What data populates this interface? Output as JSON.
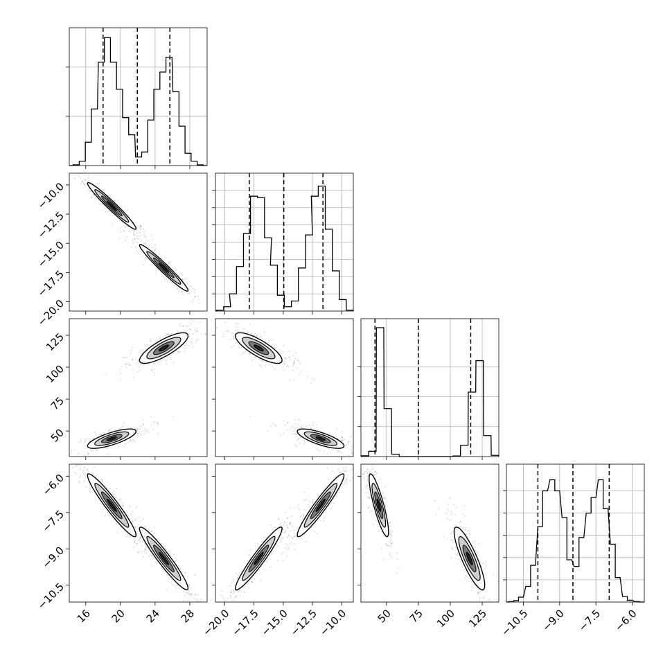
{
  "chart_data": {
    "type": "corner",
    "title": "",
    "grid": true,
    "parameters": [
      {
        "range": [
          14.1,
          30.0
        ],
        "ticks": [
          16,
          20,
          24,
          28
        ],
        "tick_labels": [
          "16",
          "20",
          "24",
          "28"
        ],
        "quantiles": [
          18.0,
          21.95,
          25.7
        ]
      },
      {
        "range": [
          -20.8,
          -9.0
        ],
        "ticks": [
          -20.0,
          -17.5,
          -15.0,
          -12.5,
          -10.0
        ],
        "tick_labels": [
          "−20.0",
          "−17.5",
          "−15.0",
          "−12.5",
          "−10.0"
        ],
        "quantiles": [
          -17.9,
          -14.95,
          -11.6
        ]
      },
      {
        "range": [
          30,
          138
        ],
        "ticks": [
          50,
          75,
          100,
          125
        ],
        "tick_labels": [
          "50",
          "75",
          "100",
          "125"
        ],
        "quantiles": [
          41,
          75,
          116
        ]
      },
      {
        "range": [
          -11.2,
          -5.5
        ],
        "ticks": [
          -10.5,
          -9.0,
          -7.5,
          -6.0
        ],
        "tick_labels": [
          "−10.5",
          "−9.0",
          "−7.5",
          "−6.0"
        ],
        "quantiles": [
          -9.9,
          -8.45,
          -6.95
        ]
      }
    ],
    "histograms": [
      {
        "x": [
          14.9,
          15.6,
          16.3,
          17.0,
          17.8,
          18.5,
          19.2,
          19.9,
          20.6,
          21.3,
          22.1,
          22.8,
          23.5,
          24.2,
          24.9,
          25.6,
          26.4,
          27.1,
          27.8,
          28.5,
          29.2
        ],
        "values": [
          3,
          18,
          95,
          230,
          420,
          520,
          420,
          310,
          195,
          125,
          35,
          55,
          185,
          310,
          380,
          440,
          300,
          160,
          50,
          18,
          3
        ],
        "ylim": [
          0,
          560
        ],
        "yticks": [
          200,
          400
        ]
      },
      {
        "x": [
          -20.4,
          -19.8,
          -19.3,
          -18.7,
          -18.1,
          -17.5,
          -16.9,
          -16.3,
          -15.8,
          -15.2,
          -14.6,
          -14.0,
          -13.4,
          -12.8,
          -12.3,
          -11.7,
          -11.1,
          -10.5,
          -9.9,
          -9.3
        ],
        "values": [
          3,
          15,
          60,
          155,
          270,
          400,
          395,
          255,
          160,
          55,
          15,
          35,
          150,
          265,
          400,
          435,
          285,
          140,
          40,
          3
        ],
        "ylim": [
          0,
          480
        ],
        "yticks": [
          60,
          120,
          180,
          240,
          300,
          360,
          420
        ]
      },
      {
        "x": [
          33.2,
          39.0,
          45.0,
          51.0,
          57.0,
          63.0,
          69.0,
          75.0,
          81.0,
          87.0,
          93.0,
          99.0,
          105.0,
          111.0,
          117.0,
          123.0,
          129.0,
          135.0
        ],
        "values": [
          5,
          35,
          860,
          320,
          15,
          0,
          0,
          0,
          0,
          0,
          0,
          0,
          4,
          75,
          430,
          640,
          140,
          8
        ],
        "ylim": [
          0,
          920
        ],
        "yticks": [
          200,
          400,
          600
        ]
      },
      {
        "x": [
          -11.0,
          -10.8,
          -10.6,
          -10.3,
          -10.1,
          -9.8,
          -9.6,
          -9.3,
          -9.1,
          -8.8,
          -8.6,
          -8.3,
          -8.1,
          -7.8,
          -7.6,
          -7.3,
          -7.1,
          -6.8,
          -6.6,
          -6.3,
          -6.1,
          -5.8
        ],
        "values": [
          2,
          6,
          22,
          70,
          165,
          340,
          500,
          550,
          500,
          380,
          190,
          160,
          290,
          400,
          470,
          550,
          420,
          260,
          110,
          25,
          8,
          2
        ],
        "ylim": [
          0,
          620
        ],
        "yticks": [
          100,
          200,
          300,
          400,
          500
        ]
      }
    ],
    "pairs": [
      {
        "x": 0,
        "y": 1,
        "modes": [
          {
            "mean": [
              19.0,
              -11.8
            ],
            "sd": [
              1.4,
              1.0
            ],
            "r": -0.97
          },
          {
            "mean": [
              25.0,
              -17.1
            ],
            "sd": [
              1.4,
              1.0
            ],
            "r": -0.97
          }
        ]
      },
      {
        "x": 0,
        "y": 2,
        "modes": [
          {
            "mean": [
              19.0,
              44
            ],
            "sd": [
              1.4,
              3.8
            ],
            "r": 0.75
          },
          {
            "mean": [
              25.0,
              115
            ],
            "sd": [
              1.4,
              6.0
            ],
            "r": 0.8
          }
        ]
      },
      {
        "x": 1,
        "y": 2,
        "modes": [
          {
            "mean": [
              -11.8,
              44
            ],
            "sd": [
              1.0,
              3.8
            ],
            "r": -0.75
          },
          {
            "mean": [
              -17.1,
              115
            ],
            "sd": [
              1.0,
              6.0
            ],
            "r": -0.8
          }
        ]
      },
      {
        "x": 0,
        "y": 3,
        "modes": [
          {
            "mean": [
              19.0,
              -7.2
            ],
            "sd": [
              1.4,
              0.65
            ],
            "r": -0.95
          },
          {
            "mean": [
              25.0,
              -9.4
            ],
            "sd": [
              1.4,
              0.65
            ],
            "r": -0.95
          }
        ]
      },
      {
        "x": 1,
        "y": 3,
        "modes": [
          {
            "mean": [
              -11.8,
              -7.2
            ],
            "sd": [
              1.0,
              0.65
            ],
            "r": 0.95
          },
          {
            "mean": [
              -17.1,
              -9.4
            ],
            "sd": [
              1.0,
              0.65
            ],
            "r": 0.95
          }
        ]
      },
      {
        "x": 2,
        "y": 3,
        "modes": [
          {
            "mean": [
              44,
              -7.2
            ],
            "sd": [
              3.8,
              0.65
            ],
            "r": -0.85
          },
          {
            "mean": [
              115,
              -9.4
            ],
            "sd": [
              6.0,
              0.65
            ],
            "r": -0.85
          }
        ]
      }
    ]
  }
}
